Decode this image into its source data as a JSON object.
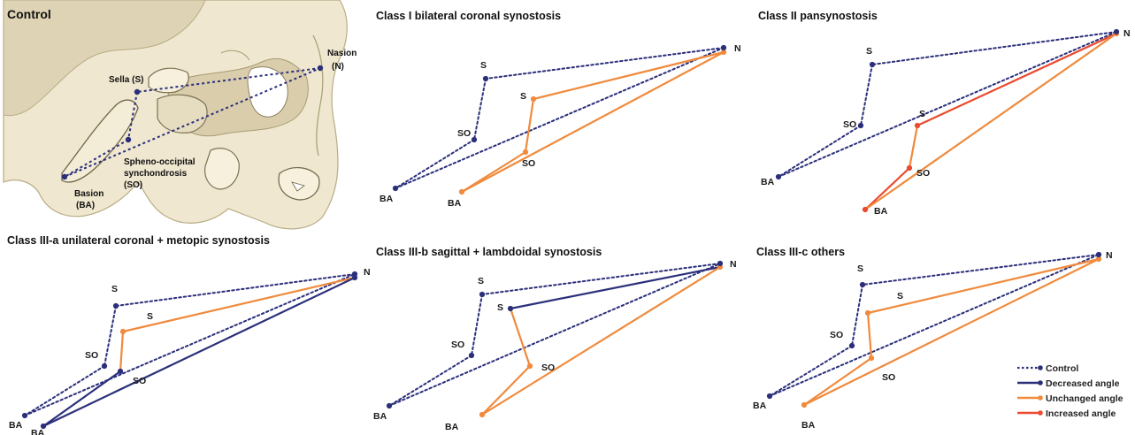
{
  "colors": {
    "control": "#2b2f7a",
    "decreased": "#2b2f7a",
    "unchanged": "#f08a3c",
    "increased": "#ea4a2e",
    "bone": "#efe7cf",
    "bone_shadow": "#b8ac86"
  },
  "control_panel": {
    "title": "Control",
    "labels": {
      "nasion": "Nasion",
      "nasion_abbr": "(N)",
      "sella": "Sella (S)",
      "so_line1": "Spheno-occipital",
      "so_line2": "synchondrosis",
      "so_line3": "(SO)",
      "basion": "Basion",
      "basion_abbr": "(BA)"
    }
  },
  "panels": [
    {
      "id": "class-i",
      "title": "Class I bilateral coronal synostosis",
      "control": {
        "N": "N",
        "S": "S",
        "SO": "SO",
        "BA": "BA"
      },
      "variant": {
        "S": "S",
        "SO": "SO",
        "BA": "BA"
      },
      "segments": {
        "N-S": "unchanged",
        "S-SO": "unchanged",
        "SO-BA": "unchanged",
        "N-BA": "unchanged"
      }
    },
    {
      "id": "class-ii",
      "title": "Class II pansynostosis",
      "control": {
        "N": "N",
        "S": "S",
        "SO": "SO",
        "BA": "BA"
      },
      "variant": {
        "S": "S",
        "SO": "SO",
        "BA": "BA"
      },
      "segments": {
        "N-S": "increased",
        "S-SO": "unchanged",
        "SO-BA": "increased",
        "N-BA": "unchanged"
      }
    },
    {
      "id": "class-iii-a",
      "title": "Class III-a unilateral coronal + metopic synostosis",
      "control": {
        "N": "N",
        "S": "S",
        "SO": "SO",
        "BA": "BA"
      },
      "variant": {
        "S": "S",
        "SO": "SO",
        "BA": "BA"
      },
      "segments": {
        "N-S": "unchanged",
        "S-SO": "unchanged",
        "SO-BA": "decreased",
        "N-BA": "decreased"
      }
    },
    {
      "id": "class-iii-b",
      "title": "Class III-b sagittal + lambdoidal synostosis",
      "control": {
        "N": "N",
        "S": "S",
        "SO": "SO",
        "BA": "BA"
      },
      "variant": {
        "S": "S",
        "SO": "SO",
        "BA": "BA"
      },
      "segments": {
        "N-S": "decreased",
        "S-SO": "unchanged",
        "SO-BA": "unchanged",
        "N-BA": "unchanged"
      }
    },
    {
      "id": "class-iii-c",
      "title": "Class III-c others",
      "control": {
        "N": "N",
        "S": "S",
        "SO": "SO",
        "BA": "BA"
      },
      "variant": {
        "S": "S",
        "SO": "SO",
        "BA": "BA"
      },
      "segments": {
        "N-S": "unchanged",
        "S-SO": "unchanged",
        "SO-BA": "unchanged",
        "N-BA": "unchanged"
      }
    }
  ],
  "legend": {
    "items": [
      {
        "key": "control",
        "label": "Control",
        "style": "dotted"
      },
      {
        "key": "decreased",
        "label": "Decreased angle",
        "style": "solid"
      },
      {
        "key": "unchanged",
        "label": "Unchanged angle",
        "style": "solid"
      },
      {
        "key": "increased",
        "label": "Increased angle",
        "style": "solid"
      }
    ]
  }
}
